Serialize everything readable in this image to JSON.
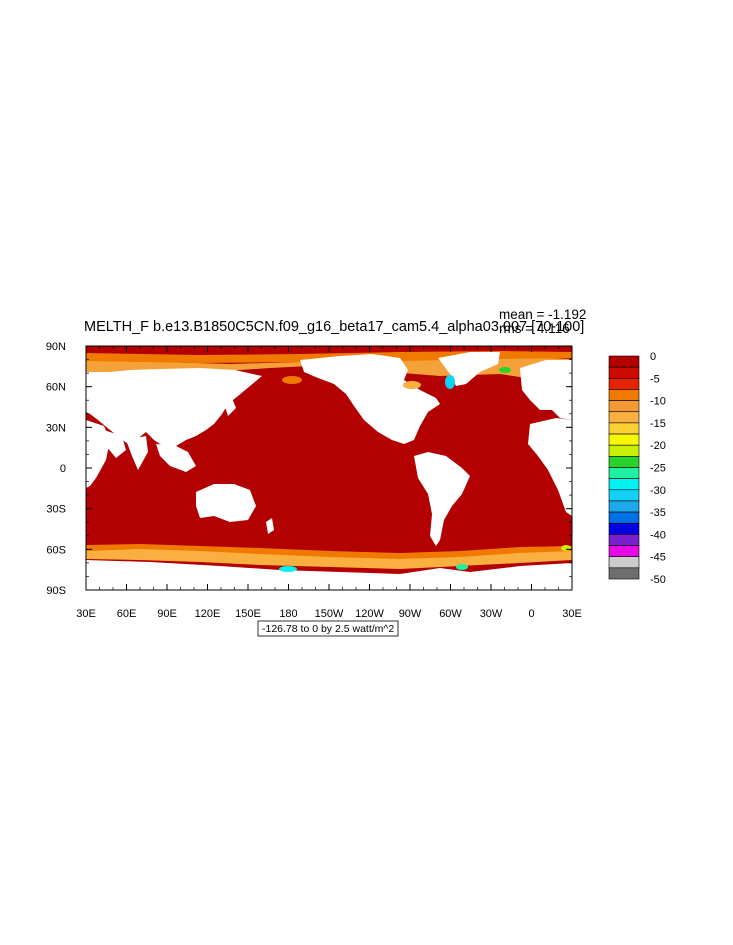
{
  "chart_data": {
    "type": "heatmap",
    "title": "MELTH_F b.e13.B1850C5CN.f09_g16_beta17_cam5.4_alpha03.007 [70-100]",
    "stats": {
      "mean": "mean = -1.192",
      "rms": "rms = 4.116"
    },
    "map_projection": "cylindrical equidistant, centered at 180",
    "longitude_range": [
      30,
      390
    ],
    "latitude_range": [
      -90,
      90
    ],
    "x_tick_labels": [
      "30E",
      "60E",
      "90E",
      "120E",
      "150E",
      "180",
      "150W",
      "120W",
      "90W",
      "60W",
      "30W",
      "0",
      "30E"
    ],
    "y_tick_labels": [
      "90S",
      "60S",
      "30S",
      "0",
      "30N",
      "60N",
      "90N"
    ],
    "y_tick_values": [
      -90,
      -60,
      -30,
      0,
      30,
      60,
      90
    ],
    "x_tick_values": [
      30,
      60,
      90,
      120,
      150,
      180,
      210,
      240,
      270,
      300,
      330,
      360,
      390
    ],
    "colorbar": {
      "labels": [
        "0",
        "-5",
        "-10",
        "-15",
        "-20",
        "-25",
        "-30",
        "-35",
        "-40",
        "-45",
        "-50"
      ],
      "colors": [
        "#b30000",
        "#cc0a00",
        "#e62200",
        "#f07a00",
        "#f59a33",
        "#f9b040",
        "#fdd033",
        "#f7f700",
        "#c8f000",
        "#2ad12a",
        "#21f0a0",
        "#00f2f2",
        "#10d2f8",
        "#1ea8ee",
        "#0070e6",
        "#0000e0",
        "#7a1ed2",
        "#e60ae6",
        "#cccccc",
        "#6e6e6e"
      ]
    },
    "range_note": "-126.78 to 0 by 2.5 watt/m^2",
    "ocean_value_bands": [
      {
        "lat_range": [
          -55,
          60
        ],
        "value_range": [
          -2.5,
          0
        ],
        "description_color": "#b30000"
      },
      {
        "lat_range": [
          -70,
          -55
        ],
        "value_range": [
          -12.5,
          -2.5
        ]
      },
      {
        "lat_range": [
          63,
          88
        ],
        "value_range": [
          -12.5,
          0
        ]
      }
    ]
  }
}
